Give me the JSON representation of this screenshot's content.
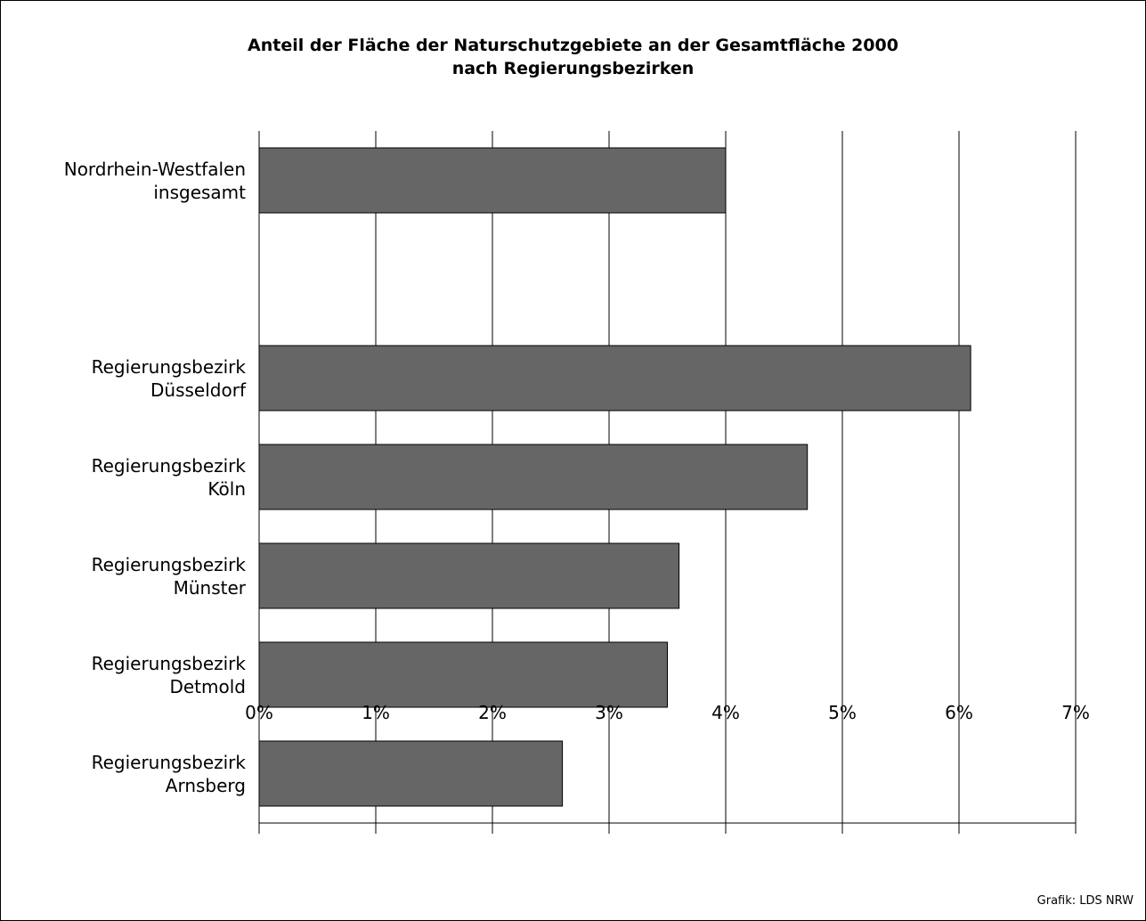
{
  "chart_data": {
    "type": "bar",
    "orientation": "horizontal",
    "title": "Anteil der Fläche der Naturschutzgebiete an der Gesamtfläche 2000\nnach Regierungsbezirken",
    "source": "Grafik: LDS NRW",
    "categories": [
      "Nordrhein-Westfalen\ninsgesamt",
      null,
      "Regierungsbezirk\nDüsseldorf",
      "Regierungsbezirk\nKöln",
      "Regierungsbezirk\nMünster",
      "Regierungsbezirk\nDetmold",
      "Regierungsbezirk\nArnsberg"
    ],
    "values": [
      4.0,
      null,
      6.1,
      4.7,
      3.6,
      3.5,
      2.6
    ],
    "color": "#666666",
    "xlim": [
      0,
      7
    ],
    "xticks": [
      {
        "value": 0,
        "label": "0%"
      },
      {
        "value": 1,
        "label": "1%"
      },
      {
        "value": 2,
        "label": "2%"
      },
      {
        "value": 3,
        "label": "3%"
      },
      {
        "value": 4,
        "label": "4%"
      },
      {
        "value": 5,
        "label": "5%"
      },
      {
        "value": 6,
        "label": "6%"
      },
      {
        "value": 7,
        "label": "7%"
      }
    ],
    "grid": true
  }
}
